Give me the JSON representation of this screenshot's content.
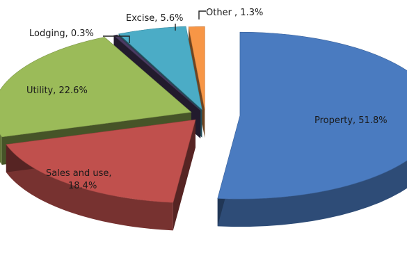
{
  "chart_data": {
    "type": "pie",
    "title": "",
    "slices": [
      {
        "label": "Property",
        "value": 51.8,
        "value_text": "51.8%",
        "color": "#4a7bc0"
      },
      {
        "label": "Sales and use",
        "value": 18.4,
        "value_text": "18.4%",
        "color": "#c0504d"
      },
      {
        "label": "Utility",
        "value": 22.6,
        "value_text": "22.6%",
        "color": "#9bbb59"
      },
      {
        "label": "Lodging",
        "value": 0.3,
        "value_text": "0.3%",
        "color": "#4b3b63"
      },
      {
        "label": "Excise",
        "value": 5.6,
        "value_text": "5.6%",
        "color": "#4bacc6"
      },
      {
        "label": "Other",
        "value": 1.3,
        "value_text": "1.3%",
        "color": "#f79646"
      }
    ],
    "labels": {
      "property": "Property, 51.8%",
      "sales_line1": "Sales and use,",
      "sales_line2": "18.4%",
      "utility": "Utility, 22.6%",
      "lodging": "Lodging, 0.3%",
      "excise": "Excise, 5.6%",
      "other": "Other , 1.3%"
    },
    "style": "exploded-3d-pie",
    "legend": "none"
  }
}
